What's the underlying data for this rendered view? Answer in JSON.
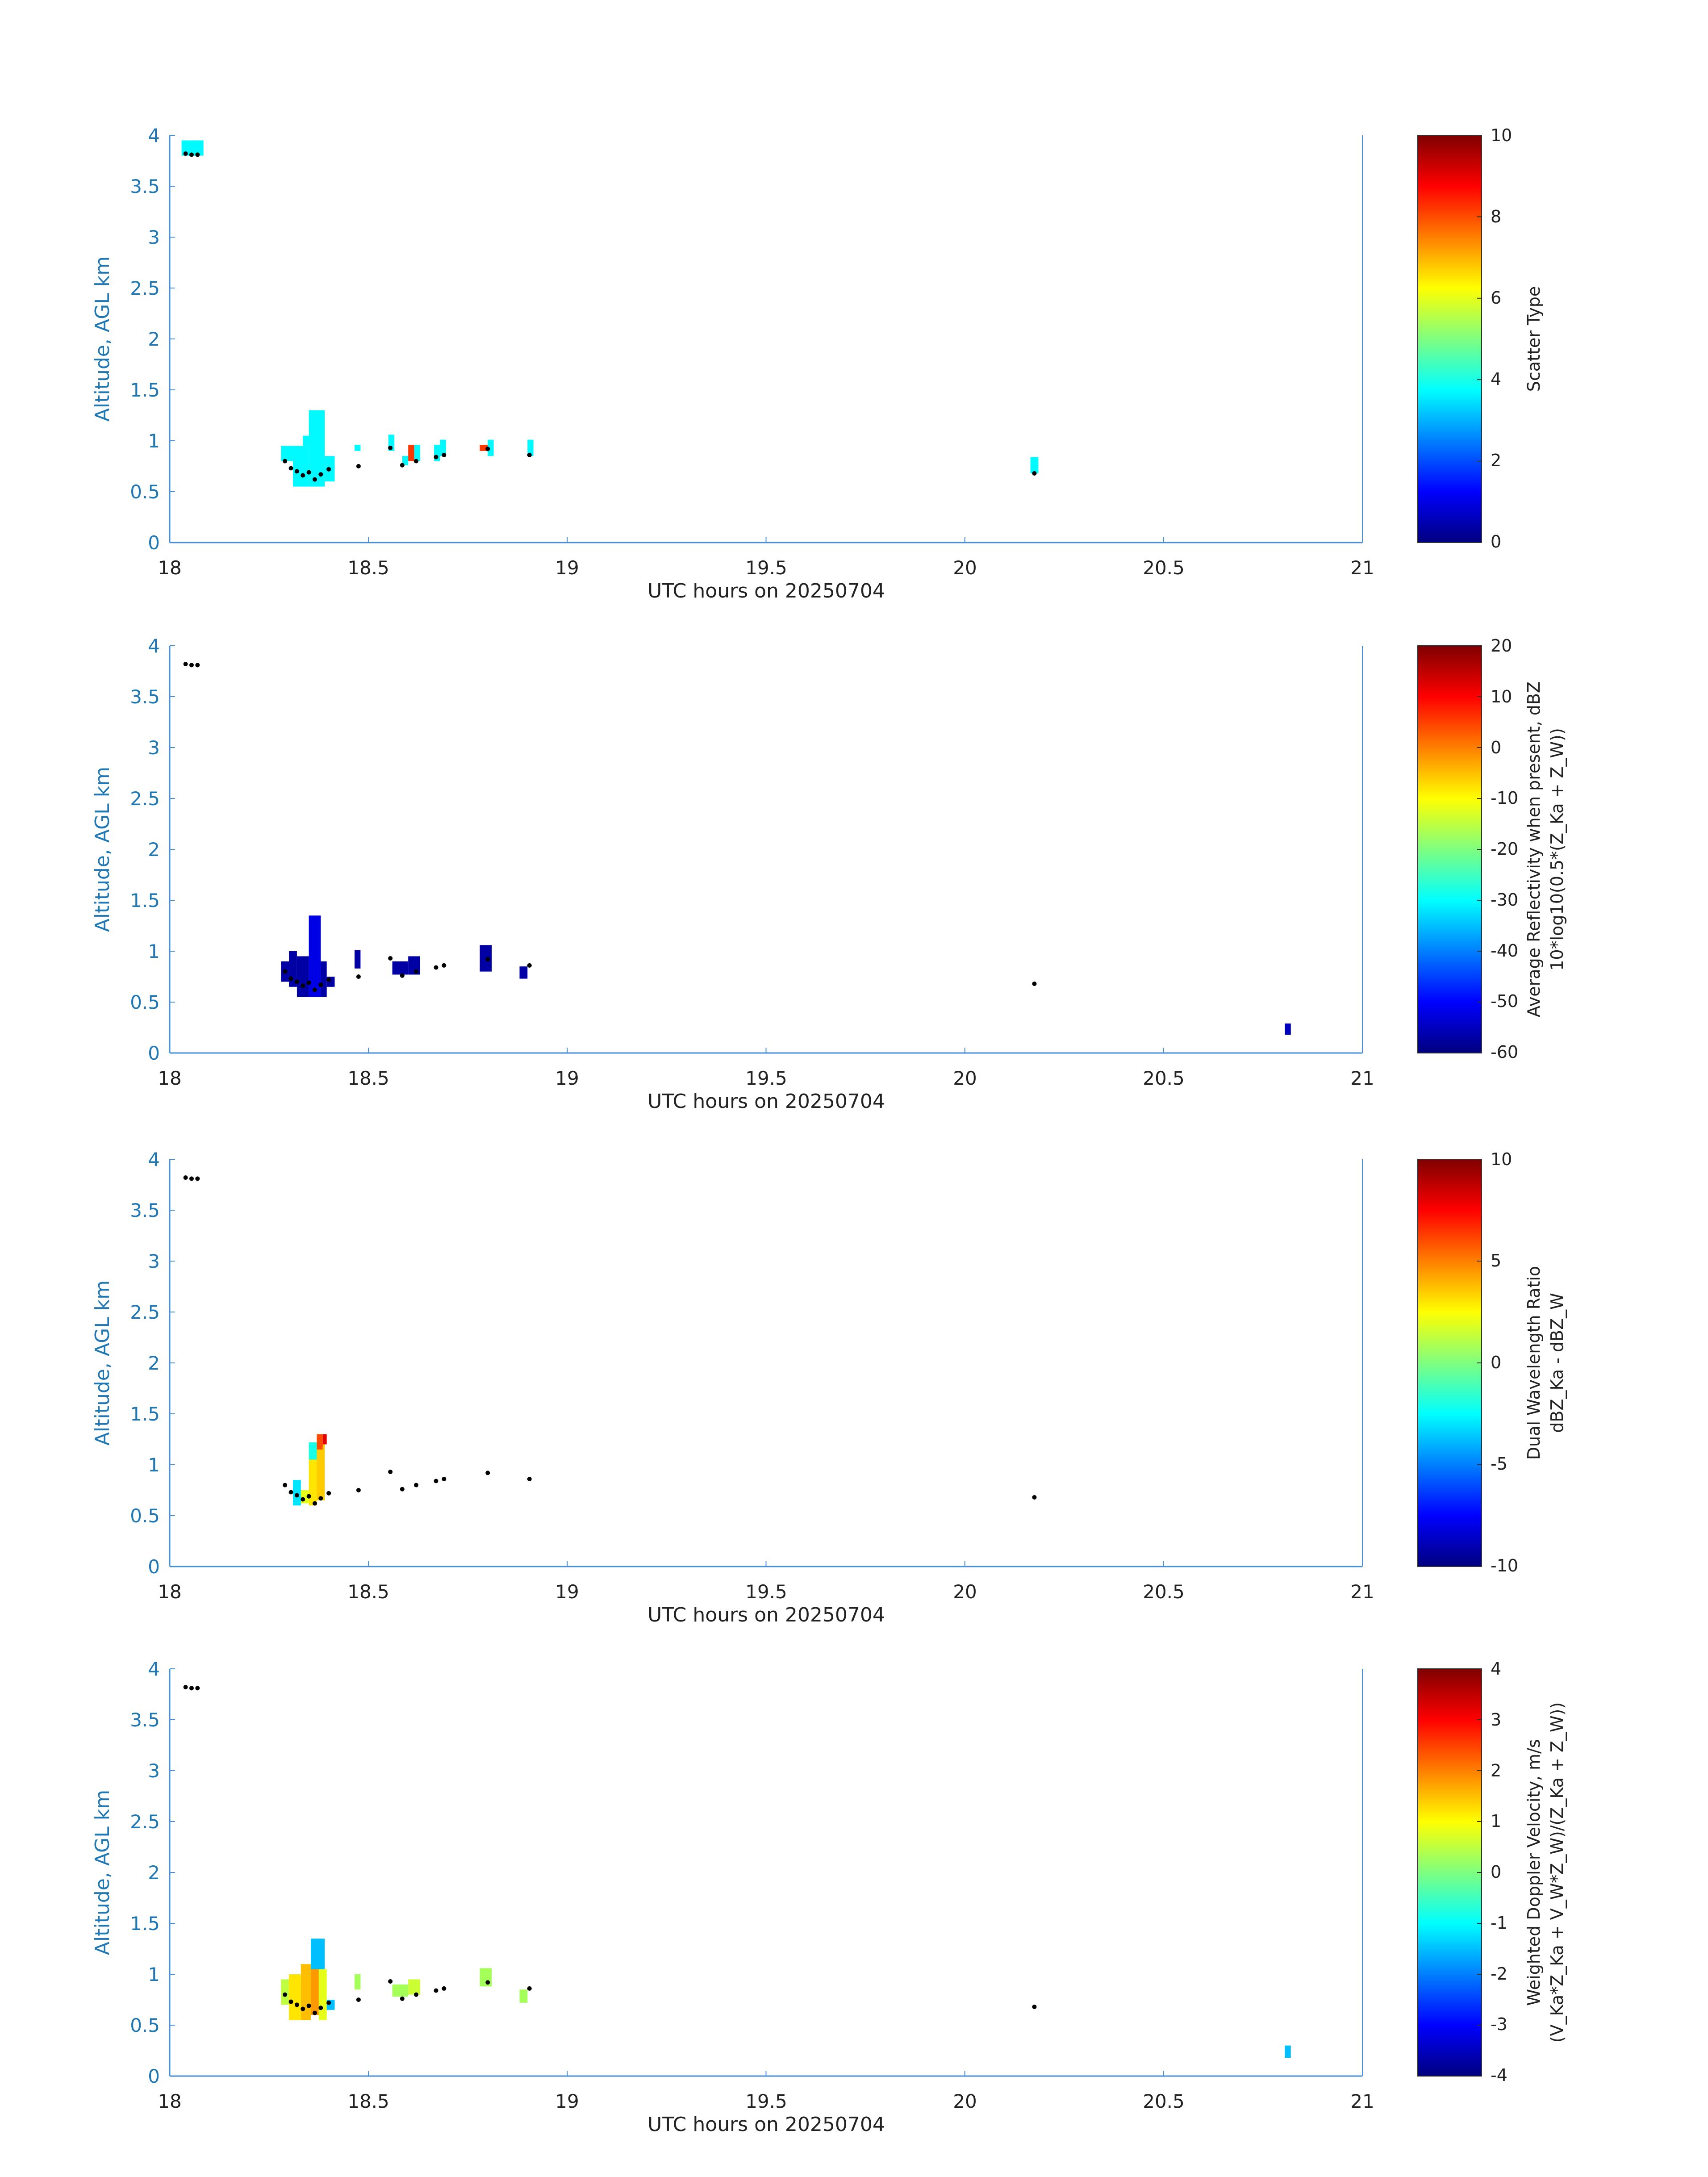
{
  "colors": {
    "axis": "#4a90d9",
    "ytick": "#1f77b4",
    "text": "#222222",
    "marker": "#000000",
    "cyan": "#2ff0d6",
    "red": "#f0401e",
    "darkblue": "#0a1a9a",
    "blue": "#1f55e0",
    "jet": [
      "#00007f",
      "#0000ff",
      "#007fff",
      "#00ffff",
      "#7fff7f",
      "#ffff00",
      "#ff7f00",
      "#ff0000",
      "#7f0000"
    ]
  },
  "chart_data": [
    {
      "type": "heatmap",
      "title": "",
      "xlabel": "UTC hours on 20250704",
      "ylabel": "Altitude, AGL km",
      "xlim": [
        18,
        21
      ],
      "ylim": [
        0,
        4
      ],
      "x_ticks": [
        "18",
        "18.5",
        "19",
        "19.5",
        "20",
        "20.5",
        "21"
      ],
      "y_ticks": [
        "0",
        "0.5",
        "1",
        "1.5",
        "2",
        "2.5",
        "3",
        "3.5",
        "4"
      ],
      "colorbar": {
        "label": "Scatter Type",
        "range": [
          0,
          10
        ],
        "ticks": [
          "0",
          "2",
          "4",
          "6",
          "8",
          "10"
        ]
      },
      "cells": [
        {
          "x0": 18.03,
          "x1": 18.085,
          "y0": 3.8,
          "y1": 3.95,
          "value": 3.7
        },
        {
          "x0": 18.28,
          "x1": 18.31,
          "y0": 0.8,
          "y1": 0.95,
          "value": 3.7
        },
        {
          "x0": 18.31,
          "x1": 18.35,
          "y0": 0.55,
          "y1": 0.95,
          "value": 3.7
        },
        {
          "x0": 18.335,
          "x1": 18.365,
          "y0": 0.95,
          "y1": 1.05,
          "value": 3.7
        },
        {
          "x0": 18.35,
          "x1": 18.39,
          "y0": 0.55,
          "y1": 1.3,
          "value": 3.7
        },
        {
          "x0": 18.39,
          "x1": 18.415,
          "y0": 0.6,
          "y1": 0.85,
          "value": 3.7
        },
        {
          "x0": 18.465,
          "x1": 18.48,
          "y0": 0.9,
          "y1": 0.96,
          "value": 3.7
        },
        {
          "x0": 18.55,
          "x1": 18.565,
          "y0": 0.9,
          "y1": 1.06,
          "value": 3.7
        },
        {
          "x0": 18.585,
          "x1": 18.6,
          "y0": 0.76,
          "y1": 0.85,
          "value": 3.7
        },
        {
          "x0": 18.6,
          "x1": 18.615,
          "y0": 0.8,
          "y1": 0.96,
          "value": 8.2
        },
        {
          "x0": 18.615,
          "x1": 18.63,
          "y0": 0.8,
          "y1": 0.96,
          "value": 3.7
        },
        {
          "x0": 18.665,
          "x1": 18.68,
          "y0": 0.8,
          "y1": 0.96,
          "value": 3.7
        },
        {
          "x0": 18.68,
          "x1": 18.695,
          "y0": 0.85,
          "y1": 1.01,
          "value": 3.7
        },
        {
          "x0": 18.78,
          "x1": 18.8,
          "y0": 0.9,
          "y1": 0.96,
          "value": 8.2
        },
        {
          "x0": 18.8,
          "x1": 18.815,
          "y0": 0.85,
          "y1": 1.01,
          "value": 3.7
        },
        {
          "x0": 18.9,
          "x1": 18.915,
          "y0": 0.85,
          "y1": 1.01,
          "value": 3.7
        },
        {
          "x0": 20.165,
          "x1": 20.185,
          "y0": 0.68,
          "y1": 0.84,
          "value": 3.7
        }
      ]
    },
    {
      "type": "heatmap",
      "title": "",
      "xlabel": "UTC hours on 20250704",
      "ylabel": "Altitude, AGL km",
      "xlim": [
        18,
        21
      ],
      "ylim": [
        0,
        4
      ],
      "x_ticks": [
        "18",
        "18.5",
        "19",
        "19.5",
        "20",
        "20.5",
        "21"
      ],
      "y_ticks": [
        "0",
        "0.5",
        "1",
        "1.5",
        "2",
        "2.5",
        "3",
        "3.5",
        "4"
      ],
      "colorbar": {
        "label": "Average Reflectivity when present, dBZ",
        "label2": "10*log10(0.5*(Z_Ka + Z_W))",
        "range": [
          -60,
          20
        ],
        "ticks": [
          "-60",
          "-50",
          "-40",
          "-30",
          "-20",
          "-10",
          "0",
          "10",
          "20"
        ]
      },
      "cells": [
        {
          "x0": 18.28,
          "x1": 18.3,
          "y0": 0.7,
          "y1": 0.9,
          "value": -57
        },
        {
          "x0": 18.3,
          "x1": 18.32,
          "y0": 0.65,
          "y1": 1.0,
          "value": -57
        },
        {
          "x0": 18.32,
          "x1": 18.35,
          "y0": 0.55,
          "y1": 0.95,
          "value": -57
        },
        {
          "x0": 18.35,
          "x1": 18.38,
          "y0": 0.55,
          "y1": 1.35,
          "value": -52
        },
        {
          "x0": 18.38,
          "x1": 18.395,
          "y0": 0.55,
          "y1": 0.9,
          "value": -57
        },
        {
          "x0": 18.395,
          "x1": 18.415,
          "y0": 0.65,
          "y1": 0.75,
          "value": -57
        },
        {
          "x0": 18.465,
          "x1": 18.48,
          "y0": 0.83,
          "y1": 1.01,
          "value": -57
        },
        {
          "x0": 18.56,
          "x1": 18.6,
          "y0": 0.77,
          "y1": 0.9,
          "value": -57
        },
        {
          "x0": 18.6,
          "x1": 18.63,
          "y0": 0.77,
          "y1": 0.95,
          "value": -57
        },
        {
          "x0": 18.78,
          "x1": 18.81,
          "y0": 0.8,
          "y1": 1.06,
          "value": -57
        },
        {
          "x0": 18.88,
          "x1": 18.9,
          "y0": 0.73,
          "y1": 0.85,
          "value": -57
        },
        {
          "x0": 20.805,
          "x1": 20.82,
          "y0": 0.18,
          "y1": 0.29,
          "value": -55
        }
      ]
    },
    {
      "type": "heatmap",
      "title": "",
      "xlabel": "UTC hours on 20250704",
      "ylabel": "Altitude, AGL km",
      "xlim": [
        18,
        21
      ],
      "ylim": [
        0,
        4
      ],
      "x_ticks": [
        "18",
        "18.5",
        "19",
        "19.5",
        "20",
        "20.5",
        "21"
      ],
      "y_ticks": [
        "0",
        "0.5",
        "1",
        "1.5",
        "2",
        "2.5",
        "3",
        "3.5",
        "4"
      ],
      "colorbar": {
        "label": "Dual Wavelength Ratio",
        "label2": "dBZ_Ka - dBZ_W",
        "range": [
          -10,
          10
        ],
        "ticks": [
          "-10",
          "-5",
          "0",
          "5",
          "10"
        ]
      },
      "cells": [
        {
          "x0": 18.31,
          "x1": 18.33,
          "y0": 0.6,
          "y1": 0.85,
          "value": -3
        },
        {
          "x0": 18.33,
          "x1": 18.35,
          "y0": 0.62,
          "y1": 0.75,
          "value": 2
        },
        {
          "x0": 18.35,
          "x1": 18.37,
          "y0": 0.6,
          "y1": 1.15,
          "value": 3
        },
        {
          "x0": 18.37,
          "x1": 18.39,
          "y0": 0.65,
          "y1": 1.2,
          "value": 3.5
        },
        {
          "x0": 18.35,
          "x1": 18.37,
          "y0": 1.05,
          "y1": 1.22,
          "value": -2
        },
        {
          "x0": 18.37,
          "x1": 18.385,
          "y0": 1.15,
          "y1": 1.3,
          "value": 6
        },
        {
          "x0": 18.385,
          "x1": 18.395,
          "y0": 1.2,
          "y1": 1.3,
          "value": 8
        }
      ]
    },
    {
      "type": "heatmap",
      "title": "",
      "xlabel": "UTC hours on 20250704",
      "ylabel": "Altitude, AGL km",
      "xlim": [
        18,
        21
      ],
      "ylim": [
        0,
        4
      ],
      "x_ticks": [
        "18",
        "18.5",
        "19",
        "19.5",
        "20",
        "20.5",
        "21"
      ],
      "y_ticks": [
        "0",
        "0.5",
        "1",
        "1.5",
        "2",
        "2.5",
        "3",
        "3.5",
        "4"
      ],
      "colorbar": {
        "label": "Weighted Doppler Velocity, m/s",
        "label2": "(V_Ka*Z_Ka + V_W*Z_W)/(Z_Ka + Z_W))",
        "range": [
          -4,
          4
        ],
        "ticks": [
          "-4",
          "-3",
          "-2",
          "-1",
          "0",
          "1",
          "2",
          "3",
          "4"
        ]
      },
      "cells": [
        {
          "x0": 18.28,
          "x1": 18.3,
          "y0": 0.7,
          "y1": 0.95,
          "value": 0.5
        },
        {
          "x0": 18.3,
          "x1": 18.33,
          "y0": 0.55,
          "y1": 1.0,
          "value": 1.2
        },
        {
          "x0": 18.33,
          "x1": 18.355,
          "y0": 0.55,
          "y1": 1.1,
          "value": 1.5
        },
        {
          "x0": 18.355,
          "x1": 18.375,
          "y0": 0.6,
          "y1": 1.1,
          "value": 1.8
        },
        {
          "x0": 18.355,
          "x1": 18.39,
          "y0": 1.05,
          "y1": 1.35,
          "value": -1.5
        },
        {
          "x0": 18.375,
          "x1": 18.395,
          "y0": 0.55,
          "y1": 1.05,
          "value": 0.8
        },
        {
          "x0": 18.395,
          "x1": 18.415,
          "y0": 0.65,
          "y1": 0.75,
          "value": -1.5
        },
        {
          "x0": 18.465,
          "x1": 18.48,
          "y0": 0.85,
          "y1": 1.0,
          "value": 0.3
        },
        {
          "x0": 18.56,
          "x1": 18.6,
          "y0": 0.78,
          "y1": 0.9,
          "value": 0.3
        },
        {
          "x0": 18.6,
          "x1": 18.63,
          "y0": 0.8,
          "y1": 0.95,
          "value": 0.6
        },
        {
          "x0": 18.78,
          "x1": 18.81,
          "y0": 0.88,
          "y1": 1.06,
          "value": 0.3
        },
        {
          "x0": 18.88,
          "x1": 18.9,
          "y0": 0.72,
          "y1": 0.85,
          "value": 0.3
        },
        {
          "x0": 20.805,
          "x1": 20.82,
          "y0": 0.18,
          "y1": 0.3,
          "value": -1.5
        }
      ]
    }
  ],
  "markers": [
    {
      "x": 18.04,
      "y": 3.82
    },
    {
      "x": 18.055,
      "y": 3.81
    },
    {
      "x": 18.07,
      "y": 3.81
    },
    {
      "x": 18.29,
      "y": 0.8
    },
    {
      "x": 18.305,
      "y": 0.73
    },
    {
      "x": 18.32,
      "y": 0.7
    },
    {
      "x": 18.335,
      "y": 0.66
    },
    {
      "x": 18.35,
      "y": 0.69
    },
    {
      "x": 18.365,
      "y": 0.62
    },
    {
      "x": 18.38,
      "y": 0.67
    },
    {
      "x": 18.4,
      "y": 0.72
    },
    {
      "x": 18.475,
      "y": 0.75
    },
    {
      "x": 18.555,
      "y": 0.93
    },
    {
      "x": 18.585,
      "y": 0.76
    },
    {
      "x": 18.62,
      "y": 0.8
    },
    {
      "x": 18.67,
      "y": 0.84
    },
    {
      "x": 18.69,
      "y": 0.86
    },
    {
      "x": 18.8,
      "y": 0.92
    },
    {
      "x": 18.905,
      "y": 0.86
    },
    {
      "x": 20.175,
      "y": 0.68
    }
  ]
}
